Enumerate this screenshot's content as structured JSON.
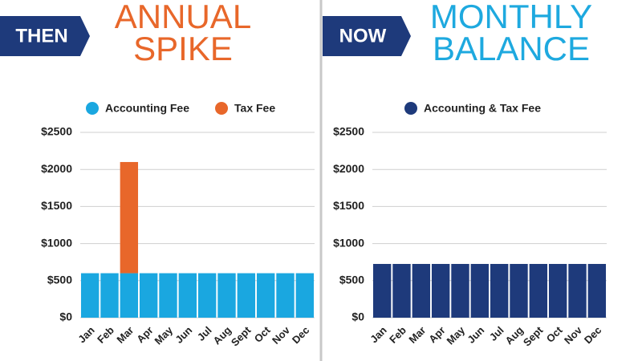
{
  "chart_data": [
    {
      "type": "bar",
      "stacked": true,
      "badge": "THEN",
      "title": [
        "ANNUAL",
        "SPIKE"
      ],
      "title_color": "#e8672a",
      "categories": [
        "Jan",
        "Feb",
        "Mar",
        "Apr",
        "May",
        "Jun",
        "Jul",
        "Aug",
        "Sept",
        "Oct",
        "Nov",
        "Dec"
      ],
      "series": [
        {
          "name": "Accounting Fee",
          "color": "#1aa7e0",
          "values": [
            600,
            600,
            600,
            600,
            600,
            600,
            600,
            600,
            600,
            600,
            600,
            600
          ]
        },
        {
          "name": "Tax Fee",
          "color": "#e8672a",
          "values": [
            null,
            null,
            1500,
            null,
            null,
            null,
            null,
            null,
            null,
            null,
            null,
            null
          ]
        }
      ],
      "ylim": [
        0,
        2500
      ],
      "yticks": [
        {
          "value": 0,
          "label": "$0"
        },
        {
          "value": 500,
          "label": "$500"
        },
        {
          "value": 1000,
          "label": "$1000"
        },
        {
          "value": 1500,
          "label": "$1500"
        },
        {
          "value": 2000,
          "label": "$2000"
        },
        {
          "value": 2500,
          "label": "$2500"
        }
      ],
      "grid": true
    },
    {
      "type": "bar",
      "stacked": true,
      "badge": "NOW",
      "title": [
        "MONTHLY",
        "BALANCE"
      ],
      "title_color": "#1ea9df",
      "categories": [
        "Jan",
        "Feb",
        "Mar",
        "Apr",
        "May",
        "Jun",
        "Jul",
        "Aug",
        "Sept",
        "Oct",
        "Nov",
        "Dec"
      ],
      "series": [
        {
          "name": "Accounting & Tax Fee",
          "color": "#1e3a7b",
          "values": [
            725,
            725,
            725,
            725,
            725,
            725,
            725,
            725,
            725,
            725,
            725,
            725
          ]
        }
      ],
      "ylim": [
        0,
        2500
      ],
      "yticks": [
        {
          "value": 0,
          "label": "$0"
        },
        {
          "value": 500,
          "label": "$500"
        },
        {
          "value": 1000,
          "label": "$1000"
        },
        {
          "value": 1500,
          "label": "$1500"
        },
        {
          "value": 2000,
          "label": "$2000"
        },
        {
          "value": 2500,
          "label": "$2500"
        }
      ],
      "grid": true
    }
  ]
}
